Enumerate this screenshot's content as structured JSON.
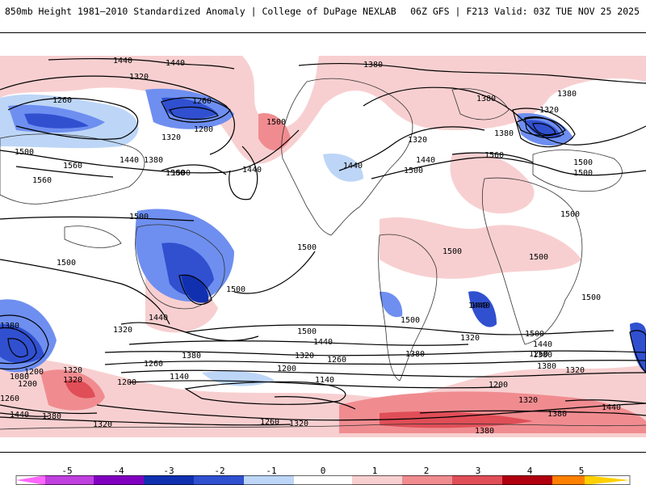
{
  "header": {
    "title_left": "850mb Height 1981–2010 Standardized Anomaly | College of DuPage NEXLAB",
    "title_right": "06Z GFS | F213 Valid: 03Z TUE NOV 25 2025"
  },
  "map": {
    "contour_labels": [
      "1440",
      "1440",
      "1380",
      "1380",
      "1320",
      "1260",
      "1260",
      "1200",
      "1320",
      "1500",
      "1500",
      "1440",
      "1380",
      "1500",
      "1560",
      "1560",
      "1500",
      "1440",
      "1500",
      "1440",
      "1320",
      "1440",
      "1500",
      "1560",
      "1380",
      "1320",
      "1380",
      "1500",
      "1500",
      "1500",
      "1500",
      "1500",
      "1500",
      "1500",
      "1500",
      "1440",
      "1320",
      "1500",
      "1440",
      "1380",
      "1320",
      "1260",
      "1200",
      "1140",
      "1140",
      "1200",
      "1260",
      "1320",
      "1380",
      "1200",
      "1080",
      "1200",
      "1320",
      "1260",
      "1440",
      "1380",
      "1320",
      "1260",
      "1320",
      "1500",
      "1440",
      "1380",
      "1320",
      "1500",
      "1440",
      "1380",
      "1260",
      "1200",
      "1320",
      "1380",
      "1440",
      "1380",
      "1500",
      "1380",
      "1320",
      "1440"
    ]
  },
  "colorbar": {
    "tick_labels": [
      "-5",
      "-4",
      "-3",
      "-2",
      "-1",
      "0",
      "1",
      "2",
      "3",
      "4",
      "5"
    ],
    "colors": [
      "#ff66ff",
      "#8000c0",
      "#1030b0",
      "#3050d0",
      "#6e8ff0",
      "#bdd6f7",
      "#ffffff",
      "#f8cfd0",
      "#f08c90",
      "#e04e57",
      "#b00010",
      "#ff8000",
      "#ffd000"
    ]
  }
}
